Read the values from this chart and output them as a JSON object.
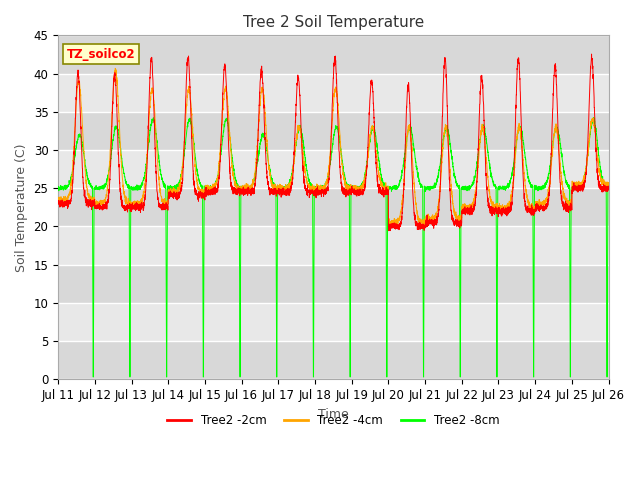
{
  "title": "Tree 2 Soil Temperature",
  "xlabel": "Time",
  "ylabel": "Soil Temperature (C)",
  "ylim": [
    0,
    45
  ],
  "series": [
    "Tree2 -2cm",
    "Tree2 -4cm",
    "Tree2 -8cm"
  ],
  "colors": [
    "#FF0000",
    "#FFA500",
    "#00FF00"
  ],
  "legend_label": "TZ_soilco2",
  "fig_bg": "#FFFFFF",
  "plot_bg": "#E8E8E8",
  "x_ticks": [
    "Jul 11",
    "Jul 12",
    "Jul 13",
    "Jul 14",
    "Jul 15",
    "Jul 16",
    "Jul 17",
    "Jul 18",
    "Jul 19",
    "Jul 20",
    "Jul 21",
    "Jul 22",
    "Jul 23",
    "Jul 24",
    "Jul 25",
    "Jul 26"
  ],
  "n_days": 15,
  "day_points": 288,
  "base_2cm": [
    23.0,
    22.5,
    22.5,
    24.0,
    24.5,
    24.5,
    24.5,
    24.5,
    24.5,
    20.0,
    20.5,
    22.0,
    22.0,
    22.5,
    25.0
  ],
  "peak_2cm": [
    40.0,
    40.0,
    42.0,
    42.0,
    41.0,
    40.5,
    39.5,
    42.0,
    39.0,
    38.5,
    42.0,
    39.5,
    42.0,
    41.0,
    42.0
  ],
  "base_4cm": [
    23.5,
    23.0,
    23.0,
    24.5,
    25.0,
    25.0,
    25.0,
    25.0,
    25.0,
    20.5,
    21.0,
    22.5,
    22.5,
    23.0,
    25.5
  ],
  "peak_4cm": [
    39.0,
    40.5,
    38.0,
    38.0,
    38.0,
    38.0,
    33.0,
    38.0,
    33.0,
    33.0,
    33.0,
    33.0,
    33.0,
    33.0,
    34.0
  ],
  "base_8cm": [
    25.0,
    25.0,
    25.0,
    25.0,
    25.0,
    25.0,
    25.0,
    25.0,
    25.0,
    25.0,
    25.0,
    25.0,
    25.0,
    25.0,
    25.0
  ],
  "peak_8cm": [
    32.0,
    33.0,
    34.0,
    34.0,
    34.0,
    32.0,
    33.0,
    33.0,
    33.0,
    33.0,
    33.0,
    33.0,
    33.0,
    33.0,
    34.0
  ],
  "title_fontsize": 11,
  "label_fontsize": 9,
  "tick_fontsize": 8.5
}
